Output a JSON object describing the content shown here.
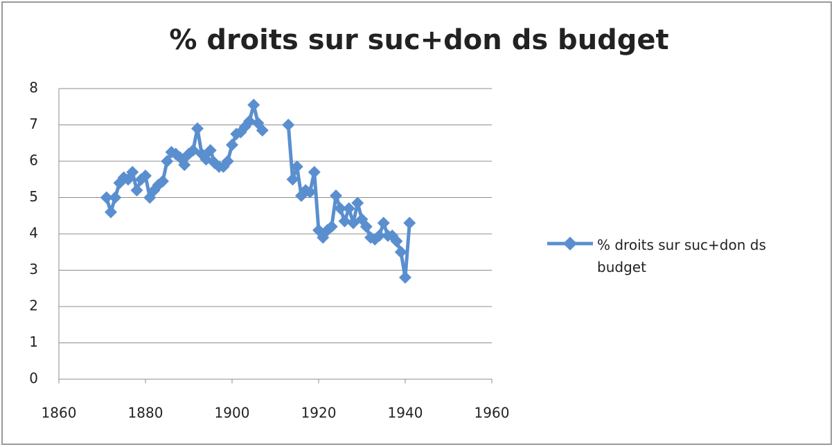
{
  "chart_data": {
    "type": "line",
    "title": "% droits sur suc+don ds budget",
    "x": [
      1871,
      1872,
      1873,
      1874,
      1875,
      1876,
      1877,
      1878,
      1879,
      1880,
      1881,
      1882,
      1883,
      1884,
      1885,
      1886,
      1887,
      1888,
      1889,
      1890,
      1891,
      1892,
      1893,
      1894,
      1895,
      1896,
      1897,
      1898,
      1899,
      1900,
      1901,
      1902,
      1903,
      1904,
      1905,
      1906,
      1907,
      1908,
      1909,
      1910,
      1911,
      1912,
      1913,
      1914,
      1915,
      1916,
      1917,
      1918,
      1919,
      1920,
      1921,
      1922,
      1923,
      1924,
      1925,
      1926,
      1927,
      1928,
      1929,
      1930,
      1931,
      1932,
      1933,
      1934,
      1935,
      1936,
      1937,
      1938,
      1939,
      1940,
      1941
    ],
    "series": [
      {
        "name": "% droits sur suc+don ds budget",
        "color": "#5a8fcf",
        "values": [
          5.0,
          4.6,
          5.0,
          5.4,
          5.55,
          5.5,
          5.7,
          5.2,
          5.5,
          5.6,
          5.0,
          5.2,
          5.35,
          5.45,
          6.0,
          6.25,
          6.2,
          6.1,
          5.9,
          6.2,
          6.3,
          6.9,
          6.2,
          6.05,
          6.3,
          5.95,
          5.85,
          5.85,
          6.0,
          6.45,
          6.75,
          6.8,
          6.95,
          7.1,
          7.55,
          7.05,
          6.85,
          null,
          null,
          null,
          null,
          null,
          7.0,
          5.5,
          5.85,
          5.05,
          5.2,
          5.15,
          5.7,
          4.1,
          3.9,
          4.1,
          4.2,
          5.05,
          4.7,
          4.35,
          4.7,
          4.3,
          4.85,
          4.4,
          4.2,
          3.9,
          3.85,
          3.95,
          4.3,
          3.95,
          3.95,
          3.8,
          3.5,
          2.8,
          4.3
        ]
      }
    ],
    "xlim": [
      1860,
      1960
    ],
    "xticks": [
      1860,
      1880,
      1900,
      1920,
      1940,
      1960
    ],
    "ylim": [
      0,
      8
    ],
    "yticks": [
      0,
      1,
      2,
      3,
      4,
      5,
      6,
      7,
      8
    ],
    "grid": true,
    "legend": "right"
  }
}
